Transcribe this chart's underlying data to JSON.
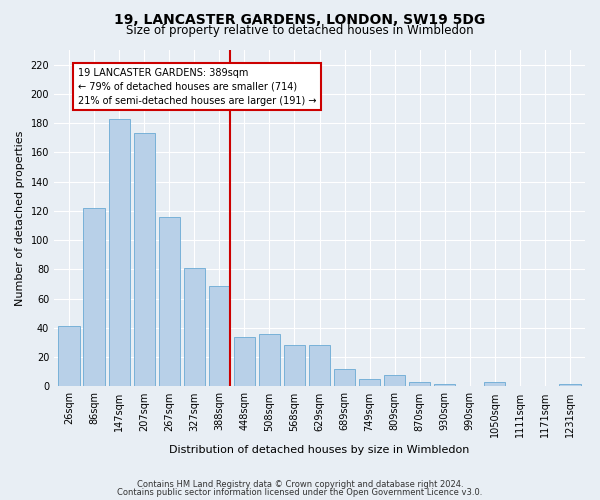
{
  "title": "19, LANCASTER GARDENS, LONDON, SW19 5DG",
  "subtitle": "Size of property relative to detached houses in Wimbledon",
  "xlabel": "Distribution of detached houses by size in Wimbledon",
  "ylabel": "Number of detached properties",
  "footnote1": "Contains HM Land Registry data © Crown copyright and database right 2024.",
  "footnote2": "Contains public sector information licensed under the Open Government Licence v3.0.",
  "categories": [
    "26sqm",
    "86sqm",
    "147sqm",
    "207sqm",
    "267sqm",
    "327sqm",
    "388sqm",
    "448sqm",
    "508sqm",
    "568sqm",
    "629sqm",
    "689sqm",
    "749sqm",
    "809sqm",
    "870sqm",
    "930sqm",
    "990sqm",
    "1050sqm",
    "1111sqm",
    "1171sqm",
    "1231sqm"
  ],
  "values": [
    41,
    122,
    183,
    173,
    116,
    81,
    69,
    34,
    36,
    28,
    28,
    12,
    5,
    8,
    3,
    2,
    0,
    3,
    0,
    0,
    2
  ],
  "bar_color": "#b8d0e8",
  "bar_edge_color": "#6aaad4",
  "vline_index": 6,
  "vline_color": "#cc0000",
  "annotation_text": "19 LANCASTER GARDENS: 389sqm\n← 79% of detached houses are smaller (714)\n21% of semi-detached houses are larger (191) →",
  "annotation_box_facecolor": "#ffffff",
  "annotation_box_edgecolor": "#cc0000",
  "ylim": [
    0,
    230
  ],
  "yticks": [
    0,
    20,
    40,
    60,
    80,
    100,
    120,
    140,
    160,
    180,
    200,
    220
  ],
  "bg_color": "#e8eef4",
  "plot_bg_color": "#e8eef4",
  "grid_color": "#ffffff",
  "title_fontsize": 10,
  "subtitle_fontsize": 8.5,
  "ylabel_fontsize": 8,
  "xlabel_fontsize": 8,
  "tick_fontsize": 7,
  "footnote_fontsize": 6
}
